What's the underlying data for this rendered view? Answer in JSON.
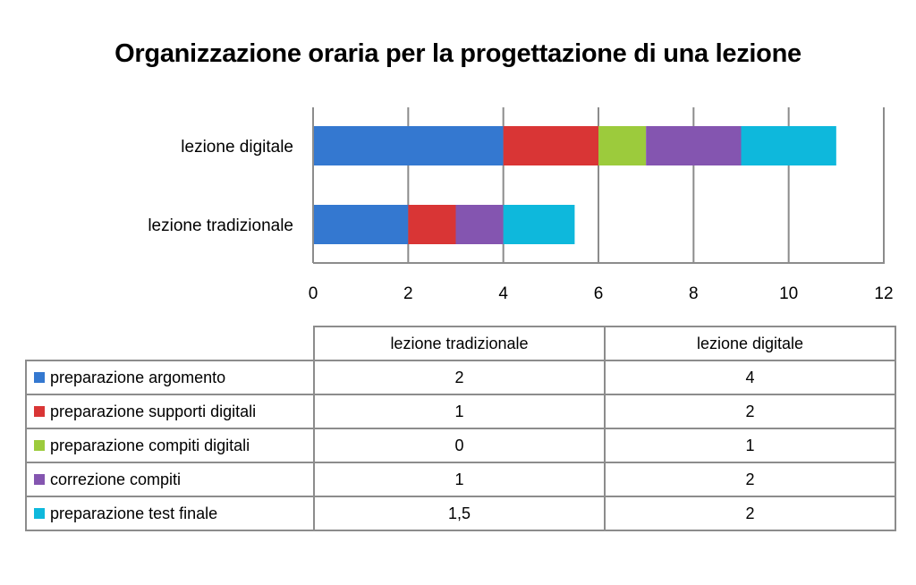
{
  "chart_data": {
    "type": "bar",
    "orientation": "horizontal",
    "stacked": true,
    "title": "Organizzazione oraria per la progettazione di una lezione",
    "categories": [
      "lezione tradizionale",
      "lezione digitale"
    ],
    "series": [
      {
        "name": "preparazione argomento",
        "color": "#3478d0",
        "values": [
          2,
          4
        ],
        "value_labels": [
          "2",
          "4"
        ]
      },
      {
        "name": "preparazione supporti digitali",
        "color": "#d93535",
        "values": [
          1,
          2
        ],
        "value_labels": [
          "1",
          "2"
        ]
      },
      {
        "name": "preparazione compiti digitali",
        "color": "#9ccb3c",
        "values": [
          0,
          1
        ],
        "value_labels": [
          "0",
          "1"
        ]
      },
      {
        "name": "correzione compiti",
        "color": "#8455b0",
        "values": [
          1,
          2
        ],
        "value_labels": [
          "1",
          "2"
        ]
      },
      {
        "name": "preparazione test finale",
        "color": "#0eb8dc",
        "values": [
          1.5,
          2
        ],
        "value_labels": [
          "1,5",
          "2"
        ]
      }
    ],
    "xlim": [
      0,
      12
    ],
    "xticks": [
      0,
      2,
      4,
      6,
      8,
      10,
      12
    ],
    "xtick_labels": [
      "0",
      "2",
      "4",
      "6",
      "8",
      "10",
      "12"
    ],
    "grid": true,
    "legend": "data-table-below"
  }
}
